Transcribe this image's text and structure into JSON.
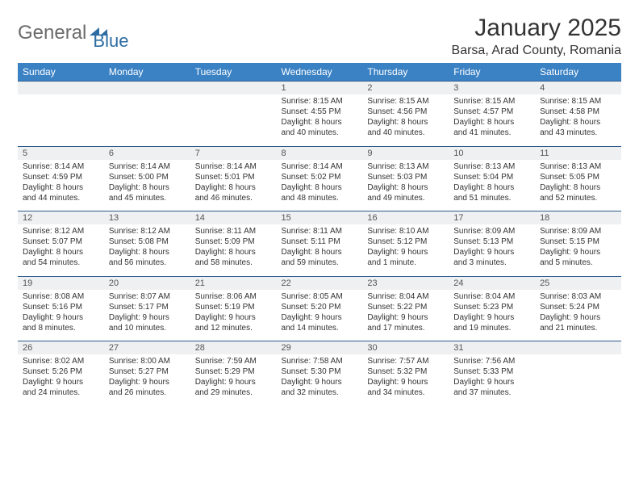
{
  "logo": {
    "text1": "General",
    "text2": "Blue"
  },
  "title": "January 2025",
  "location": "Barsa, Arad County, Romania",
  "colors": {
    "header_bg": "#3b82c4",
    "header_text": "#ffffff",
    "date_bg": "#eef0f2",
    "row_border": "#2d5a8a",
    "logo_gray": "#6b6b6b",
    "logo_blue": "#2d6ca2"
  },
  "day_headers": [
    "Sunday",
    "Monday",
    "Tuesday",
    "Wednesday",
    "Thursday",
    "Friday",
    "Saturday"
  ],
  "weeks": [
    {
      "dates": [
        "",
        "",
        "",
        "1",
        "2",
        "3",
        "4"
      ],
      "cells": [
        null,
        null,
        null,
        {
          "sunrise": "Sunrise: 8:15 AM",
          "sunset": "Sunset: 4:55 PM",
          "day1": "Daylight: 8 hours",
          "day2": "and 40 minutes."
        },
        {
          "sunrise": "Sunrise: 8:15 AM",
          "sunset": "Sunset: 4:56 PM",
          "day1": "Daylight: 8 hours",
          "day2": "and 40 minutes."
        },
        {
          "sunrise": "Sunrise: 8:15 AM",
          "sunset": "Sunset: 4:57 PM",
          "day1": "Daylight: 8 hours",
          "day2": "and 41 minutes."
        },
        {
          "sunrise": "Sunrise: 8:15 AM",
          "sunset": "Sunset: 4:58 PM",
          "day1": "Daylight: 8 hours",
          "day2": "and 43 minutes."
        }
      ]
    },
    {
      "dates": [
        "5",
        "6",
        "7",
        "8",
        "9",
        "10",
        "11"
      ],
      "cells": [
        {
          "sunrise": "Sunrise: 8:14 AM",
          "sunset": "Sunset: 4:59 PM",
          "day1": "Daylight: 8 hours",
          "day2": "and 44 minutes."
        },
        {
          "sunrise": "Sunrise: 8:14 AM",
          "sunset": "Sunset: 5:00 PM",
          "day1": "Daylight: 8 hours",
          "day2": "and 45 minutes."
        },
        {
          "sunrise": "Sunrise: 8:14 AM",
          "sunset": "Sunset: 5:01 PM",
          "day1": "Daylight: 8 hours",
          "day2": "and 46 minutes."
        },
        {
          "sunrise": "Sunrise: 8:14 AM",
          "sunset": "Sunset: 5:02 PM",
          "day1": "Daylight: 8 hours",
          "day2": "and 48 minutes."
        },
        {
          "sunrise": "Sunrise: 8:13 AM",
          "sunset": "Sunset: 5:03 PM",
          "day1": "Daylight: 8 hours",
          "day2": "and 49 minutes."
        },
        {
          "sunrise": "Sunrise: 8:13 AM",
          "sunset": "Sunset: 5:04 PM",
          "day1": "Daylight: 8 hours",
          "day2": "and 51 minutes."
        },
        {
          "sunrise": "Sunrise: 8:13 AM",
          "sunset": "Sunset: 5:05 PM",
          "day1": "Daylight: 8 hours",
          "day2": "and 52 minutes."
        }
      ]
    },
    {
      "dates": [
        "12",
        "13",
        "14",
        "15",
        "16",
        "17",
        "18"
      ],
      "cells": [
        {
          "sunrise": "Sunrise: 8:12 AM",
          "sunset": "Sunset: 5:07 PM",
          "day1": "Daylight: 8 hours",
          "day2": "and 54 minutes."
        },
        {
          "sunrise": "Sunrise: 8:12 AM",
          "sunset": "Sunset: 5:08 PM",
          "day1": "Daylight: 8 hours",
          "day2": "and 56 minutes."
        },
        {
          "sunrise": "Sunrise: 8:11 AM",
          "sunset": "Sunset: 5:09 PM",
          "day1": "Daylight: 8 hours",
          "day2": "and 58 minutes."
        },
        {
          "sunrise": "Sunrise: 8:11 AM",
          "sunset": "Sunset: 5:11 PM",
          "day1": "Daylight: 8 hours",
          "day2": "and 59 minutes."
        },
        {
          "sunrise": "Sunrise: 8:10 AM",
          "sunset": "Sunset: 5:12 PM",
          "day1": "Daylight: 9 hours",
          "day2": "and 1 minute."
        },
        {
          "sunrise": "Sunrise: 8:09 AM",
          "sunset": "Sunset: 5:13 PM",
          "day1": "Daylight: 9 hours",
          "day2": "and 3 minutes."
        },
        {
          "sunrise": "Sunrise: 8:09 AM",
          "sunset": "Sunset: 5:15 PM",
          "day1": "Daylight: 9 hours",
          "day2": "and 5 minutes."
        }
      ]
    },
    {
      "dates": [
        "19",
        "20",
        "21",
        "22",
        "23",
        "24",
        "25"
      ],
      "cells": [
        {
          "sunrise": "Sunrise: 8:08 AM",
          "sunset": "Sunset: 5:16 PM",
          "day1": "Daylight: 9 hours",
          "day2": "and 8 minutes."
        },
        {
          "sunrise": "Sunrise: 8:07 AM",
          "sunset": "Sunset: 5:17 PM",
          "day1": "Daylight: 9 hours",
          "day2": "and 10 minutes."
        },
        {
          "sunrise": "Sunrise: 8:06 AM",
          "sunset": "Sunset: 5:19 PM",
          "day1": "Daylight: 9 hours",
          "day2": "and 12 minutes."
        },
        {
          "sunrise": "Sunrise: 8:05 AM",
          "sunset": "Sunset: 5:20 PM",
          "day1": "Daylight: 9 hours",
          "day2": "and 14 minutes."
        },
        {
          "sunrise": "Sunrise: 8:04 AM",
          "sunset": "Sunset: 5:22 PM",
          "day1": "Daylight: 9 hours",
          "day2": "and 17 minutes."
        },
        {
          "sunrise": "Sunrise: 8:04 AM",
          "sunset": "Sunset: 5:23 PM",
          "day1": "Daylight: 9 hours",
          "day2": "and 19 minutes."
        },
        {
          "sunrise": "Sunrise: 8:03 AM",
          "sunset": "Sunset: 5:24 PM",
          "day1": "Daylight: 9 hours",
          "day2": "and 21 minutes."
        }
      ]
    },
    {
      "dates": [
        "26",
        "27",
        "28",
        "29",
        "30",
        "31",
        ""
      ],
      "cells": [
        {
          "sunrise": "Sunrise: 8:02 AM",
          "sunset": "Sunset: 5:26 PM",
          "day1": "Daylight: 9 hours",
          "day2": "and 24 minutes."
        },
        {
          "sunrise": "Sunrise: 8:00 AM",
          "sunset": "Sunset: 5:27 PM",
          "day1": "Daylight: 9 hours",
          "day2": "and 26 minutes."
        },
        {
          "sunrise": "Sunrise: 7:59 AM",
          "sunset": "Sunset: 5:29 PM",
          "day1": "Daylight: 9 hours",
          "day2": "and 29 minutes."
        },
        {
          "sunrise": "Sunrise: 7:58 AM",
          "sunset": "Sunset: 5:30 PM",
          "day1": "Daylight: 9 hours",
          "day2": "and 32 minutes."
        },
        {
          "sunrise": "Sunrise: 7:57 AM",
          "sunset": "Sunset: 5:32 PM",
          "day1": "Daylight: 9 hours",
          "day2": "and 34 minutes."
        },
        {
          "sunrise": "Sunrise: 7:56 AM",
          "sunset": "Sunset: 5:33 PM",
          "day1": "Daylight: 9 hours",
          "day2": "and 37 minutes."
        },
        null
      ]
    }
  ]
}
